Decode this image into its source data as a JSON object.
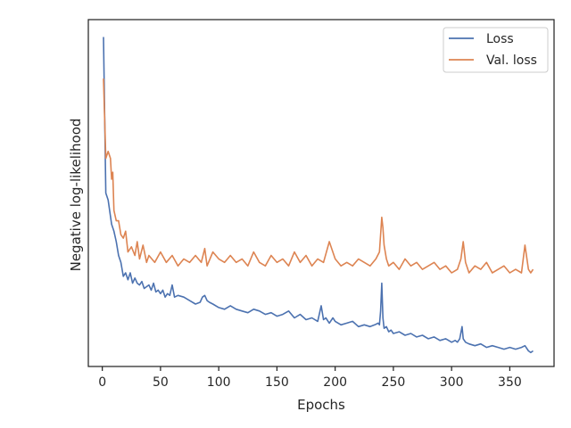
{
  "chart_data": {
    "type": "line",
    "title": "",
    "xlabel": "Epochs",
    "ylabel": "Negative log-likelihood",
    "xlim": [
      -12,
      388
    ],
    "ylim": [
      0,
      1
    ],
    "xticks": [
      0,
      50,
      100,
      150,
      200,
      250,
      300,
      350
    ],
    "yticks": [],
    "grid": false,
    "legend_position": "upper right",
    "series": [
      {
        "name": "Loss",
        "color": "#4c72b0",
        "x": [
          1,
          3,
          5,
          8,
          10,
          12,
          14,
          16,
          18,
          20,
          22,
          24,
          26,
          28,
          30,
          32,
          34,
          36,
          38,
          40,
          42,
          44,
          46,
          48,
          50,
          52,
          54,
          56,
          58,
          60,
          62,
          65,
          70,
          75,
          80,
          84,
          86,
          88,
          90,
          92,
          95,
          100,
          105,
          110,
          115,
          120,
          125,
          130,
          135,
          140,
          145,
          150,
          155,
          160,
          165,
          170,
          175,
          180,
          185,
          188,
          190,
          192,
          195,
          198,
          200,
          205,
          210,
          215,
          220,
          225,
          230,
          234,
          237,
          238,
          239,
          240,
          241,
          242,
          244,
          246,
          248,
          250,
          255,
          260,
          265,
          270,
          275,
          280,
          285,
          290,
          295,
          300,
          303,
          305,
          307,
          309,
          310,
          312,
          315,
          320,
          325,
          330,
          335,
          340,
          345,
          350,
          355,
          360,
          363,
          366,
          368,
          370
        ],
        "y": [
          0.95,
          0.5,
          0.48,
          0.41,
          0.39,
          0.36,
          0.32,
          0.3,
          0.26,
          0.27,
          0.25,
          0.27,
          0.24,
          0.255,
          0.24,
          0.235,
          0.245,
          0.225,
          0.23,
          0.235,
          0.22,
          0.24,
          0.215,
          0.22,
          0.21,
          0.22,
          0.2,
          0.21,
          0.205,
          0.235,
          0.2,
          0.205,
          0.2,
          0.19,
          0.18,
          0.185,
          0.2,
          0.205,
          0.19,
          0.185,
          0.18,
          0.17,
          0.165,
          0.175,
          0.165,
          0.16,
          0.155,
          0.165,
          0.16,
          0.15,
          0.155,
          0.145,
          0.15,
          0.16,
          0.14,
          0.15,
          0.135,
          0.14,
          0.13,
          0.175,
          0.135,
          0.14,
          0.125,
          0.14,
          0.13,
          0.12,
          0.125,
          0.13,
          0.115,
          0.12,
          0.115,
          0.12,
          0.125,
          0.12,
          0.16,
          0.24,
          0.14,
          0.11,
          0.115,
          0.1,
          0.105,
          0.095,
          0.1,
          0.09,
          0.095,
          0.085,
          0.09,
          0.08,
          0.085,
          0.075,
          0.08,
          0.07,
          0.075,
          0.07,
          0.08,
          0.115,
          0.08,
          0.07,
          0.065,
          0.06,
          0.065,
          0.055,
          0.06,
          0.055,
          0.05,
          0.055,
          0.05,
          0.055,
          0.06,
          0.045,
          0.04,
          0.045
        ]
      },
      {
        "name": "Val. loss",
        "color": "#dd8452",
        "x": [
          1,
          3,
          5,
          7,
          8,
          9,
          10,
          12,
          14,
          16,
          18,
          20,
          22,
          25,
          28,
          30,
          32,
          35,
          38,
          40,
          45,
          50,
          55,
          60,
          65,
          70,
          75,
          80,
          85,
          88,
          90,
          95,
          100,
          105,
          110,
          115,
          120,
          125,
          130,
          135,
          140,
          145,
          150,
          155,
          160,
          165,
          170,
          175,
          180,
          185,
          190,
          195,
          200,
          205,
          210,
          215,
          220,
          225,
          230,
          235,
          238,
          240,
          241,
          242,
          244,
          246,
          250,
          255,
          260,
          265,
          270,
          275,
          280,
          285,
          290,
          295,
          300,
          305,
          308,
          310,
          312,
          315,
          320,
          325,
          330,
          335,
          340,
          345,
          350,
          355,
          360,
          363,
          366,
          368,
          370
        ],
        "y": [
          0.83,
          0.6,
          0.62,
          0.6,
          0.54,
          0.56,
          0.45,
          0.42,
          0.42,
          0.38,
          0.37,
          0.39,
          0.33,
          0.345,
          0.32,
          0.36,
          0.31,
          0.35,
          0.3,
          0.32,
          0.3,
          0.33,
          0.3,
          0.32,
          0.29,
          0.31,
          0.3,
          0.32,
          0.3,
          0.34,
          0.29,
          0.33,
          0.31,
          0.3,
          0.32,
          0.3,
          0.31,
          0.29,
          0.33,
          0.3,
          0.29,
          0.32,
          0.3,
          0.31,
          0.29,
          0.33,
          0.3,
          0.32,
          0.29,
          0.31,
          0.3,
          0.36,
          0.31,
          0.29,
          0.3,
          0.29,
          0.31,
          0.3,
          0.29,
          0.31,
          0.33,
          0.43,
          0.4,
          0.35,
          0.31,
          0.29,
          0.3,
          0.28,
          0.31,
          0.29,
          0.3,
          0.28,
          0.29,
          0.3,
          0.28,
          0.29,
          0.27,
          0.28,
          0.31,
          0.36,
          0.3,
          0.27,
          0.29,
          0.28,
          0.3,
          0.27,
          0.28,
          0.29,
          0.27,
          0.28,
          0.27,
          0.35,
          0.28,
          0.27,
          0.28
        ]
      }
    ]
  }
}
